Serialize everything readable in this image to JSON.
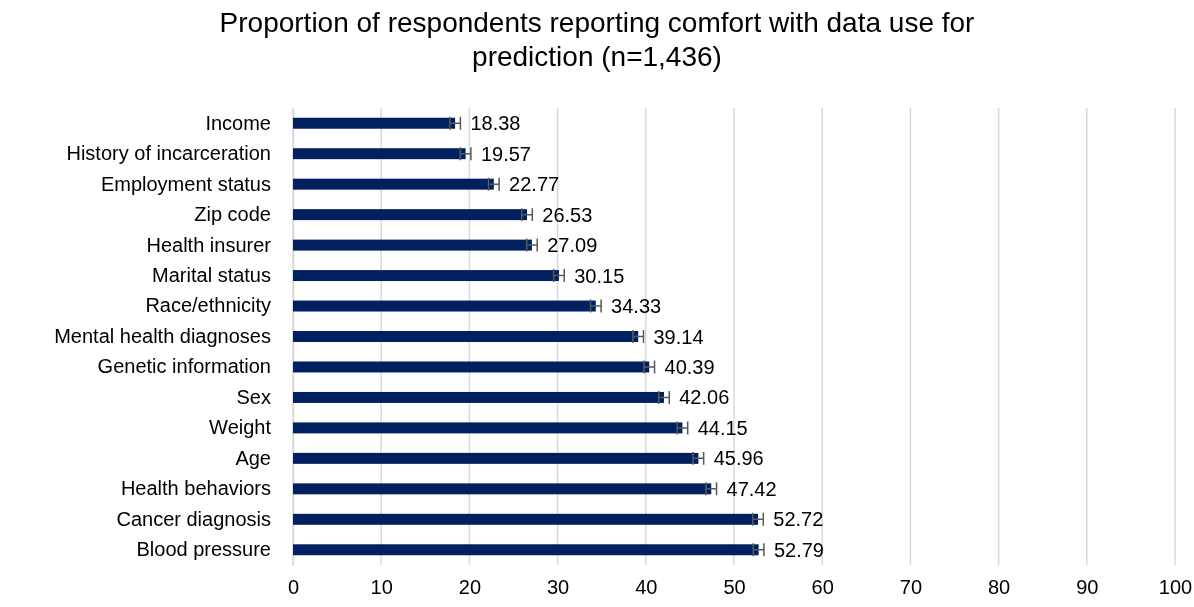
{
  "chart_data": {
    "type": "bar",
    "orientation": "horizontal",
    "title": "Proportion of respondents reporting comfort with data use for prediction (n=1,436)",
    "categories": [
      "Income",
      "History of incarceration",
      "Employment status",
      "Zip code",
      "Health insurer",
      "Marital status",
      "Race/ethnicity",
      "Mental health diagnoses",
      "Genetic information",
      "Sex",
      "Weight",
      "Age",
      "Health behaviors",
      "Cancer diagnosis",
      "Blood pressure"
    ],
    "values": [
      18.38,
      19.57,
      22.77,
      26.53,
      27.09,
      30.15,
      34.33,
      39.14,
      40.39,
      42.06,
      44.15,
      45.96,
      47.42,
      52.72,
      52.79
    ],
    "errors": [
      0.6,
      0.6,
      0.6,
      0.6,
      0.6,
      0.6,
      0.6,
      0.6,
      0.6,
      0.6,
      0.6,
      0.6,
      0.6,
      0.6,
      0.6
    ],
    "color": "#002060",
    "data_labels": true,
    "xlim": [
      0,
      100
    ],
    "xticks": [
      0,
      10,
      20,
      30,
      40,
      50,
      60,
      70,
      80,
      90,
      100
    ],
    "grid": "x"
  }
}
